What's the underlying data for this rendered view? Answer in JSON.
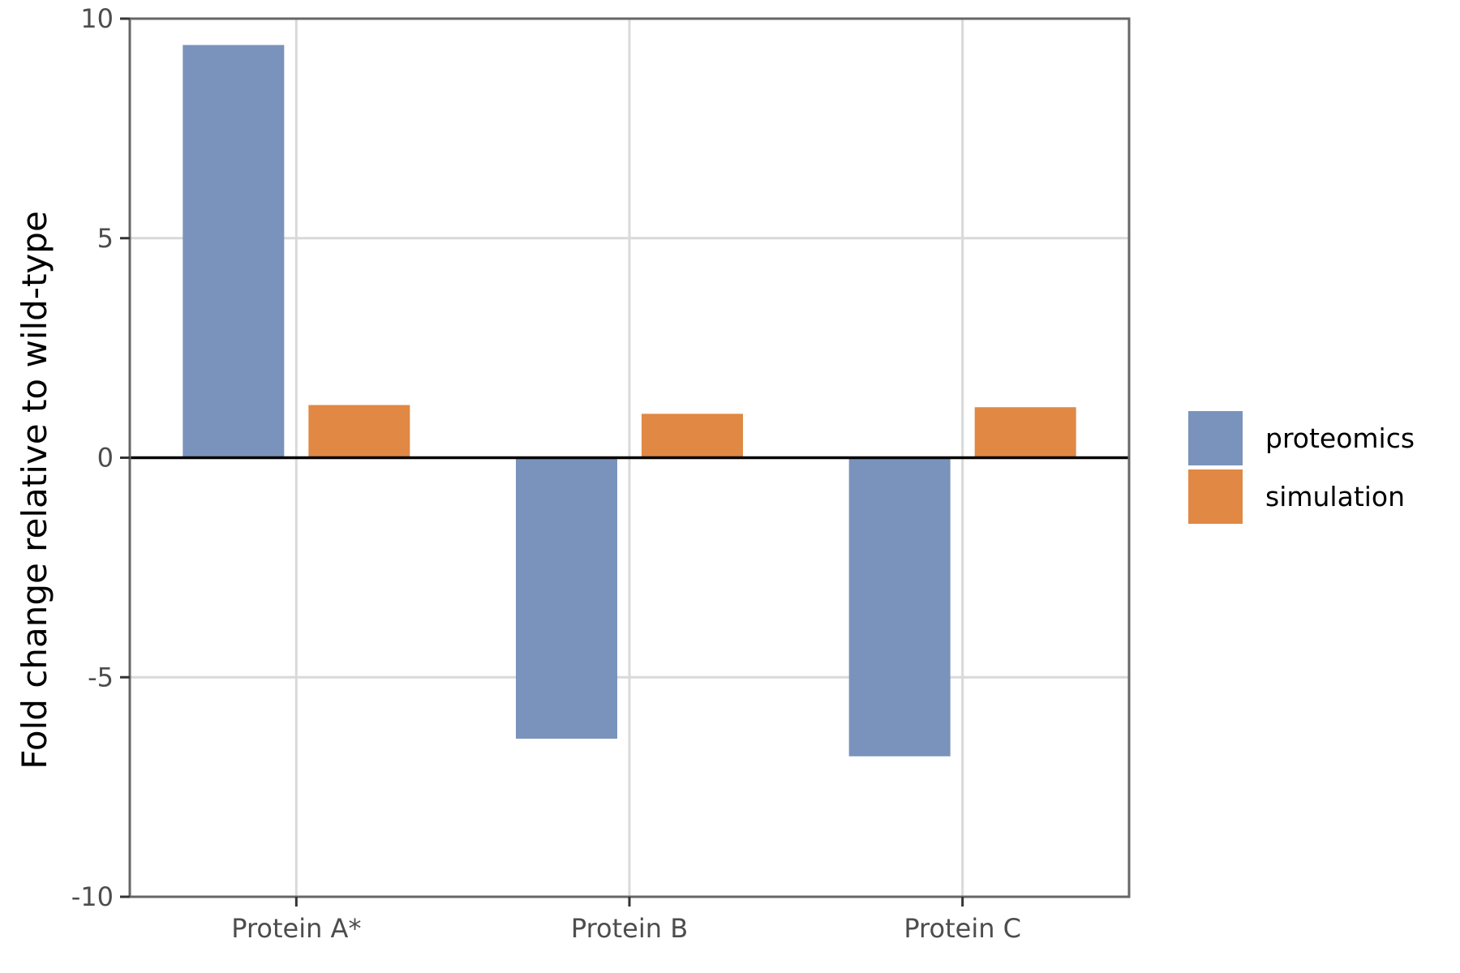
{
  "chart_data": {
    "type": "bar",
    "categories": [
      "Protein A*",
      "Protein B",
      "Protein C"
    ],
    "series": [
      {
        "name": "proteomics",
        "values": [
          9.4,
          -6.4,
          -6.8
        ],
        "color": "#7a93bc"
      },
      {
        "name": "simulation",
        "values": [
          1.2,
          1.0,
          1.15
        ],
        "color": "#e08844"
      }
    ],
    "title": "",
    "xlabel": "",
    "ylabel": "Fold change relative to wild-type",
    "ylim": [
      -10,
      10
    ],
    "yticks": [
      10,
      5,
      0,
      -5,
      -10
    ],
    "ytick_labels": [
      "10",
      "5",
      "0",
      "-5",
      "-10"
    ],
    "grid": true,
    "zero_line": true,
    "legend_position": "right"
  }
}
